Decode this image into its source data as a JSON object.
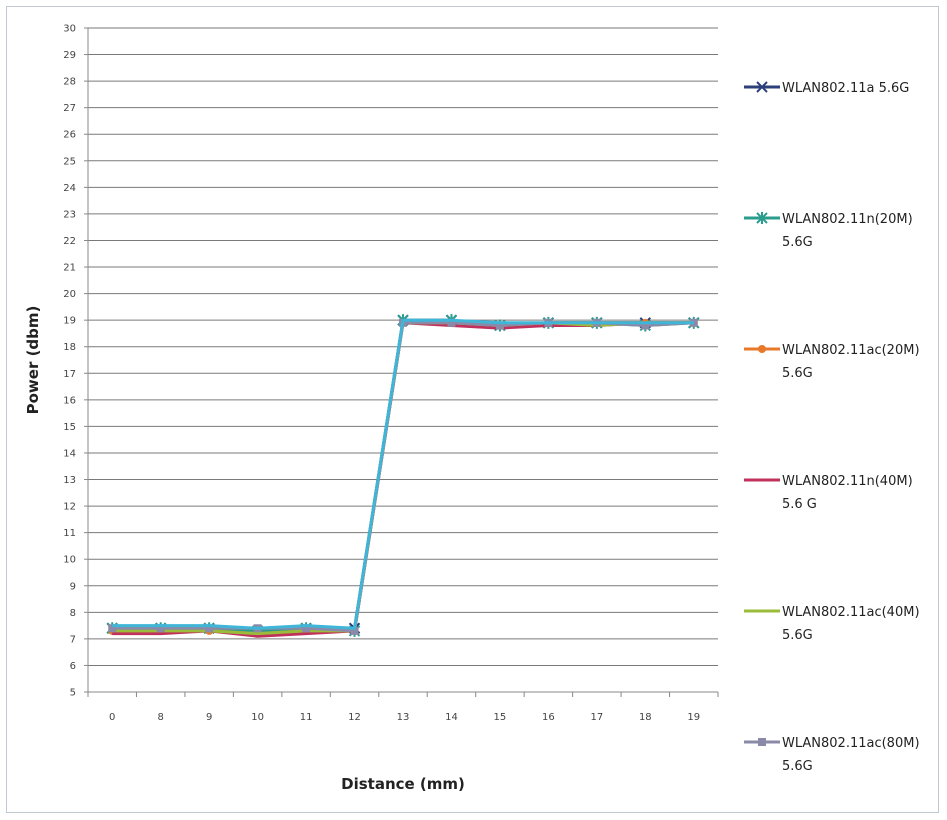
{
  "chart_data": {
    "type": "line",
    "title": "",
    "xlabel": "Distance (mm)",
    "ylabel": "Power (dbm)",
    "categories": [
      "0",
      "8",
      "9",
      "10",
      "11",
      "12",
      "13",
      "14",
      "15",
      "16",
      "17",
      "18",
      "19"
    ],
    "ylim": [
      5,
      30
    ],
    "yticks": [
      5,
      6,
      7,
      8,
      9,
      10,
      11,
      12,
      13,
      14,
      15,
      16,
      17,
      18,
      19,
      20,
      21,
      22,
      23,
      24,
      25,
      26,
      27,
      28,
      29,
      30
    ],
    "grid": true,
    "legend": "right",
    "series": [
      {
        "name": "WLAN802.11a 5.6G",
        "color": "#2b3f7a",
        "marker": "x",
        "values": [
          7.4,
          7.4,
          7.4,
          7.3,
          7.4,
          7.4,
          19.0,
          19.0,
          18.8,
          18.9,
          18.9,
          18.9,
          18.9
        ]
      },
      {
        "name": "WLAN802.11n(20M) 5.6G",
        "color": "#2a9d8f",
        "marker": "star",
        "values": [
          7.4,
          7.4,
          7.4,
          7.3,
          7.4,
          7.3,
          19.0,
          19.0,
          18.8,
          18.9,
          18.9,
          18.8,
          18.9
        ]
      },
      {
        "name": "WLAN802.11ac(20M) 5.6G",
        "color": "#e8782a",
        "marker": "circle",
        "values": [
          7.3,
          7.3,
          7.3,
          7.2,
          7.3,
          7.3,
          18.9,
          18.9,
          18.8,
          18.9,
          18.9,
          18.9,
          18.9
        ]
      },
      {
        "name": "WLAN802.11n(40M) 5.6 G",
        "color": "#c0305a",
        "marker": "none",
        "values": [
          7.2,
          7.2,
          7.3,
          7.1,
          7.2,
          7.3,
          18.9,
          18.8,
          18.7,
          18.8,
          18.8,
          18.9,
          18.9
        ]
      },
      {
        "name": "WLAN802.11ac(40M) 5.6G",
        "color": "#9bbb3a",
        "marker": "none",
        "values": [
          7.3,
          7.3,
          7.3,
          7.2,
          7.3,
          7.3,
          18.9,
          18.9,
          18.8,
          18.9,
          18.8,
          18.9,
          18.9
        ]
      },
      {
        "name": "WLAN802.11ac(80M) 5.6G",
        "color": "#8a8aa8",
        "marker": "square",
        "values": [
          7.4,
          7.4,
          7.4,
          7.4,
          7.4,
          7.3,
          18.9,
          18.9,
          18.8,
          18.9,
          18.9,
          18.8,
          18.9
        ]
      },
      {
        "name": "",
        "color": "#3fb6d8",
        "marker": "none",
        "values": [
          7.5,
          7.5,
          7.5,
          7.4,
          7.5,
          7.4,
          19.0,
          19.0,
          18.9,
          18.9,
          18.9,
          18.9,
          18.9
        ]
      }
    ],
    "legend_entries": [
      {
        "line1": "WLAN802.11a 5.6G",
        "line2": "",
        "color": "#2b3f7a",
        "marker": "x"
      },
      {
        "line1": "WLAN802.11n(20M)",
        "line2": "5.6G",
        "color": "#2a9d8f",
        "marker": "star"
      },
      {
        "line1": "WLAN802.11ac(20M)",
        "line2": "5.6G",
        "color": "#e8782a",
        "marker": "circle"
      },
      {
        "line1": "WLAN802.11n(40M)",
        "line2": "5.6 G",
        "color": "#c0305a",
        "marker": "none"
      },
      {
        "line1": "WLAN802.11ac(40M)",
        "line2": "5.6G",
        "color": "#9bbb3a",
        "marker": "none"
      },
      {
        "line1": "WLAN802.11ac(80M)",
        "line2": "5.6G",
        "color": "#8a8aa8",
        "marker": "square"
      }
    ]
  }
}
